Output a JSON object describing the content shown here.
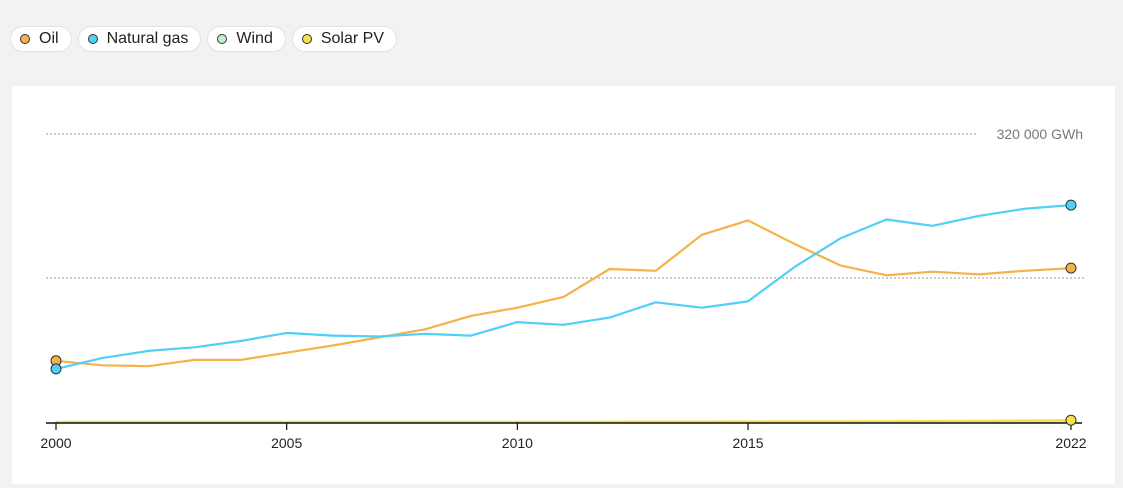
{
  "legend": [
    {
      "label": "Oil",
      "color": "#f6b24a"
    },
    {
      "label": "Natural gas",
      "color": "#4fd0f7"
    },
    {
      "label": "Wind",
      "color": "#bff0d0"
    },
    {
      "label": "Solar PV",
      "color": "#f5e04a"
    }
  ],
  "chart_data": {
    "type": "line",
    "x": [
      2000,
      2001,
      2002,
      2003,
      2004,
      2005,
      2006,
      2007,
      2008,
      2009,
      2010,
      2011,
      2012,
      2013,
      2014,
      2015,
      2016,
      2017,
      2018,
      2019,
      2020,
      2021,
      2022
    ],
    "xticks": [
      2000,
      2005,
      2010,
      2015,
      2022
    ],
    "ylim": [
      0,
      320000
    ],
    "gridlines": [
      160000,
      320000
    ],
    "gridline_label": "320 000 GWh",
    "grid": true,
    "legend_position": "top-left",
    "series": [
      {
        "name": "Oil",
        "color": "#f6b24a",
        "values": [
          68000,
          63000,
          62000,
          69000,
          69000,
          77000,
          85000,
          94000,
          103000,
          118000,
          127000,
          139000,
          170000,
          168000,
          208000,
          224000,
          198000,
          174000,
          163000,
          167000,
          164000,
          168000,
          171000
        ]
      },
      {
        "name": "Natural gas",
        "color": "#4fd0f7",
        "values": [
          59000,
          71000,
          79000,
          83000,
          90000,
          99000,
          96000,
          95000,
          98000,
          96000,
          111000,
          108000,
          116000,
          133000,
          127000,
          134000,
          172000,
          204000,
          225000,
          218000,
          229000,
          237000,
          241000
        ]
      },
      {
        "name": "Wind",
        "color": "#bff0d0",
        "values": [
          0,
          0,
          0,
          0,
          0,
          0,
          0,
          0,
          0,
          0,
          0,
          0,
          0,
          0,
          0,
          0,
          0,
          0,
          0,
          0,
          0,
          0,
          0
        ]
      },
      {
        "name": "Solar PV",
        "color": "#f5e04a",
        "values": [
          0,
          0,
          0,
          0,
          0,
          0,
          0,
          0,
          0,
          0,
          100,
          200,
          300,
          400,
          500,
          600,
          700,
          800,
          900,
          1000,
          1200,
          1500,
          2000
        ]
      }
    ]
  }
}
